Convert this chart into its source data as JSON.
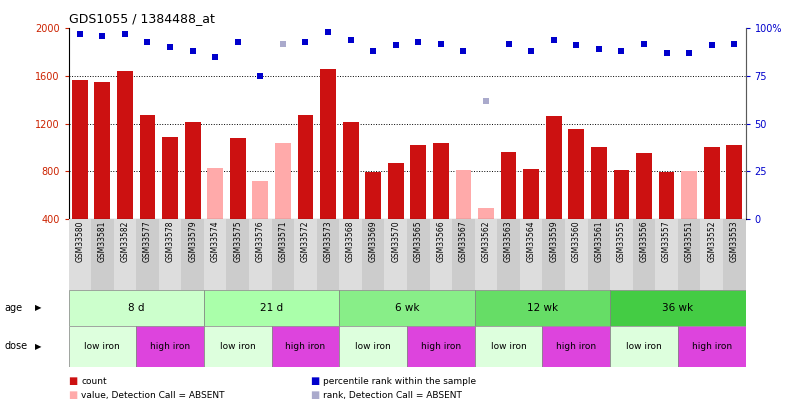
{
  "title": "GDS1055 / 1384488_at",
  "samples": [
    "GSM33580",
    "GSM33581",
    "GSM33582",
    "GSM33577",
    "GSM33578",
    "GSM33579",
    "GSM33574",
    "GSM33575",
    "GSM33576",
    "GSM33571",
    "GSM33572",
    "GSM33573",
    "GSM33568",
    "GSM33569",
    "GSM33570",
    "GSM33565",
    "GSM33566",
    "GSM33567",
    "GSM33562",
    "GSM33563",
    "GSM33564",
    "GSM33559",
    "GSM33560",
    "GSM33561",
    "GSM33555",
    "GSM33556",
    "GSM33557",
    "GSM33551",
    "GSM33552",
    "GSM33553"
  ],
  "counts": [
    1570,
    1550,
    1640,
    1270,
    1090,
    1215,
    830,
    1075,
    720,
    1040,
    1270,
    1660,
    1215,
    790,
    870,
    1020,
    1040,
    810,
    490,
    960,
    820,
    1260,
    1155,
    1000,
    810,
    950,
    790,
    800,
    1000,
    1020
  ],
  "absent": [
    false,
    false,
    false,
    false,
    false,
    false,
    true,
    false,
    true,
    true,
    false,
    false,
    false,
    false,
    false,
    false,
    false,
    true,
    true,
    false,
    false,
    false,
    false,
    false,
    false,
    false,
    false,
    true,
    false,
    false
  ],
  "percentile_rank": [
    97,
    96,
    97,
    93,
    90,
    88,
    85,
    93,
    75,
    92,
    93,
    98,
    94,
    88,
    91,
    93,
    92,
    88,
    62,
    92,
    88,
    94,
    91,
    89,
    88,
    92,
    87,
    87,
    91,
    92
  ],
  "rank_absent": [
    false,
    false,
    false,
    false,
    false,
    false,
    false,
    false,
    false,
    true,
    false,
    false,
    false,
    false,
    false,
    false,
    false,
    false,
    true,
    false,
    false,
    false,
    false,
    false,
    false,
    false,
    false,
    false,
    false,
    false
  ],
  "ylim_left": [
    400,
    2000
  ],
  "ylim_right": [
    0,
    100
  ],
  "yticks_left": [
    400,
    800,
    1200,
    1600,
    2000
  ],
  "yticks_right": [
    0,
    25,
    50,
    75,
    100
  ],
  "age_groups": [
    {
      "label": "8 d",
      "start": 0,
      "end": 6,
      "color": "#ccffcc"
    },
    {
      "label": "21 d",
      "start": 6,
      "end": 12,
      "color": "#aaffaa"
    },
    {
      "label": "6 wk",
      "start": 12,
      "end": 18,
      "color": "#88ee88"
    },
    {
      "label": "12 wk",
      "start": 18,
      "end": 24,
      "color": "#66dd66"
    },
    {
      "label": "36 wk",
      "start": 24,
      "end": 30,
      "color": "#44cc44"
    }
  ],
  "dose_groups": [
    {
      "label": "low iron",
      "start": 0,
      "end": 3,
      "color": "#ddffdd"
    },
    {
      "label": "high iron",
      "start": 3,
      "end": 6,
      "color": "#dd44dd"
    },
    {
      "label": "low iron",
      "start": 6,
      "end": 9,
      "color": "#ddffdd"
    },
    {
      "label": "high iron",
      "start": 9,
      "end": 12,
      "color": "#dd44dd"
    },
    {
      "label": "low iron",
      "start": 12,
      "end": 15,
      "color": "#ddffdd"
    },
    {
      "label": "high iron",
      "start": 15,
      "end": 18,
      "color": "#dd44dd"
    },
    {
      "label": "low iron",
      "start": 18,
      "end": 21,
      "color": "#ddffdd"
    },
    {
      "label": "high iron",
      "start": 21,
      "end": 24,
      "color": "#dd44dd"
    },
    {
      "label": "low iron",
      "start": 24,
      "end": 27,
      "color": "#ddffdd"
    },
    {
      "label": "high iron",
      "start": 27,
      "end": 30,
      "color": "#dd44dd"
    }
  ],
  "bar_color_present": "#cc1111",
  "bar_color_absent": "#ffaaaa",
  "dot_color_present": "#0000cc",
  "dot_color_absent": "#aaaacc",
  "legend_items": [
    {
      "label": "count",
      "color": "#cc1111"
    },
    {
      "label": "percentile rank within the sample",
      "color": "#0000cc"
    },
    {
      "label": "value, Detection Call = ABSENT",
      "color": "#ffaaaa"
    },
    {
      "label": "rank, Detection Call = ABSENT",
      "color": "#aaaacc"
    }
  ]
}
